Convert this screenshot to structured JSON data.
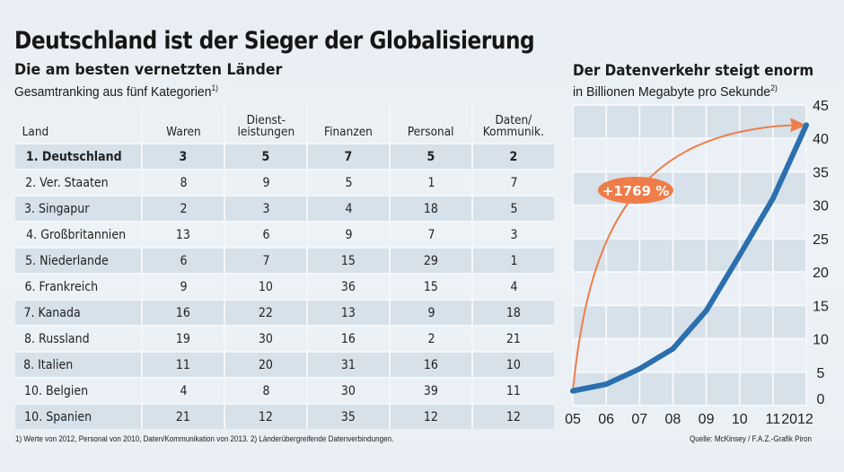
{
  "header": {
    "title": "Deutschland ist der Sieger der Globalisierung",
    "subtitle": "Die am besten vernetzten Länder",
    "description": "Gesamtranking aus fünf Kategorien",
    "description_note": "1)"
  },
  "table": {
    "columns": [
      "Land",
      "Waren",
      "Dienst-\nleistungen",
      "Finanzen",
      "Personal",
      "Daten/\nKommunik."
    ],
    "rows": [
      [
        "1. Deutschland",
        "3",
        "5",
        "7",
        "5",
        "2"
      ],
      [
        "2. Ver. Staaten",
        "8",
        "9",
        "5",
        "1",
        "7"
      ],
      [
        "3. Singapur",
        "2",
        "3",
        "4",
        "18",
        "5"
      ],
      [
        "4. Großbritannien",
        "13",
        "6",
        "9",
        "7",
        "3"
      ],
      [
        "5. Niederlande",
        "6",
        "7",
        "15",
        "29",
        "1"
      ],
      [
        "6. Frankreich",
        "9",
        "10",
        "36",
        "15",
        "4"
      ],
      [
        "7. Kanada",
        "16",
        "22",
        "13",
        "9",
        "18"
      ],
      [
        "8. Russland",
        "19",
        "30",
        "16",
        "2",
        "21"
      ],
      [
        "8. Italien",
        "11",
        "20",
        "31",
        "16",
        "10"
      ],
      [
        "10. Belgien",
        "4",
        "8",
        "30",
        "39",
        "11"
      ],
      [
        "10. Spanien",
        "21",
        "12",
        "35",
        "12",
        "12"
      ]
    ]
  },
  "footnote": "1) Werte von 2012, Personal von 2010, Daten/Kommunikation von 2013.  2) Länderübergreifende Datenverbindungen.",
  "source": "Quelle: McKinsey / F.A.Z.-Grafik Piron",
  "colors": {
    "line": "#2b6fae",
    "arrow": "#ef7d4a",
    "band": "#d6e1ea",
    "row_shade": "#d6e1ea"
  },
  "chart_data": {
    "type": "line",
    "title": "Der Datenverkehr steigt enorm",
    "subtitle": "in Billionen Megabyte pro Sekunde",
    "subtitle_note": "2)",
    "x": [
      "05",
      "06",
      "07",
      "08",
      "09",
      "10",
      "11",
      "2012"
    ],
    "series": [
      {
        "name": "Datenverkehr",
        "values": [
          2.2,
          3.2,
          5.5,
          8.5,
          14.2,
          22.5,
          31.0,
          42.0
        ]
      }
    ],
    "ylim": [
      0,
      45
    ],
    "yticks": [
      0,
      5,
      10,
      15,
      20,
      25,
      30,
      35,
      40,
      45
    ],
    "y_axis_side": "right",
    "grid": true,
    "annotation": {
      "label": "+1769 %",
      "from_x": "05",
      "to_x": "2012"
    }
  }
}
